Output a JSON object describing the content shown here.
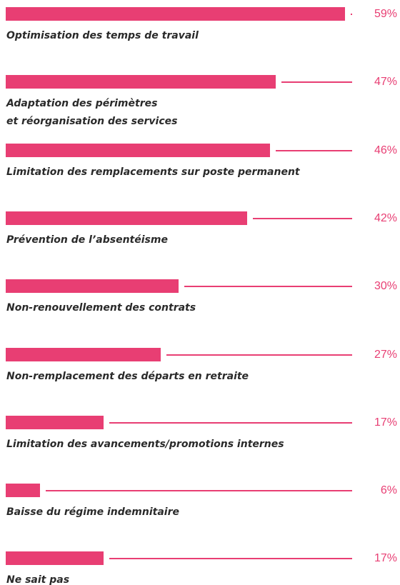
{
  "chart_data": {
    "type": "bar",
    "orientation": "horizontal",
    "color": "#e83e73",
    "categories": [
      "Optimisation des temps de travail",
      "Adaptation des périmètres\net réorganisation des services",
      "Limitation des remplacements sur poste permanent",
      "Prévention de l’absentéisme",
      "Non-renouvellement des contrats",
      "Non-remplacement des départs en retraite",
      "Limitation des avancements/promotions internes",
      "Baisse du régime indemnitaire",
      "Ne sait pas"
    ],
    "values": [
      59,
      47,
      46,
      42,
      30,
      27,
      17,
      6,
      17
    ],
    "value_labels": [
      "59%",
      "47%",
      "46%",
      "42%",
      "30%",
      "27%",
      "17%",
      "6%",
      "17%"
    ]
  }
}
